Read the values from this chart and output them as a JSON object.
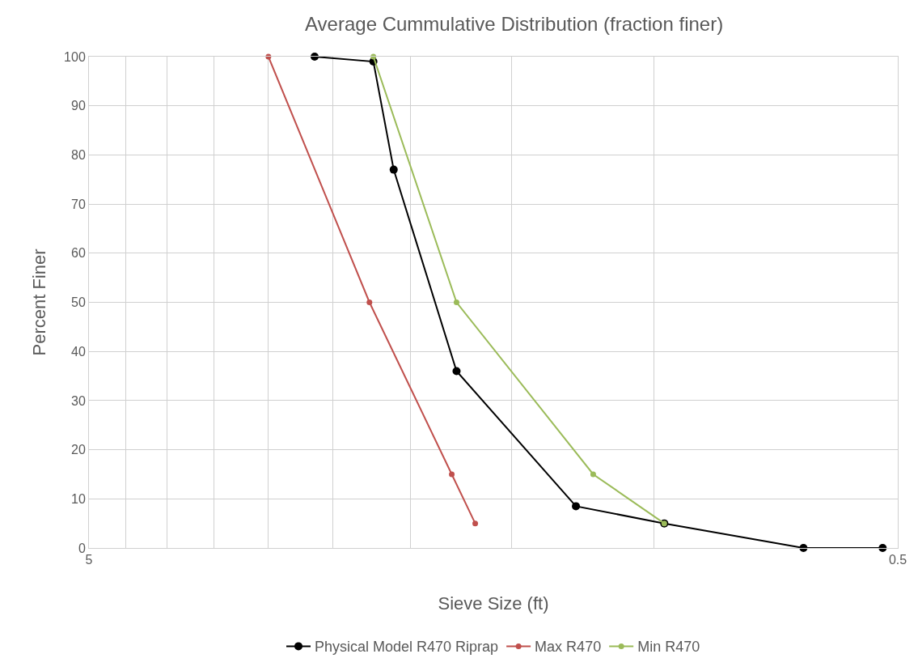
{
  "chart_data": {
    "type": "line",
    "title": "Average Cummulative Distribution (fraction finer)",
    "xlabel": "Sieve Size (ft)",
    "ylabel": "Percent Finer",
    "log": "x",
    "xlim": [
      5,
      0.5
    ],
    "xticks": [
      5,
      {
        "value": 4.5,
        "label": null
      },
      {
        "value": 4,
        "label": null
      },
      {
        "value": 3.5,
        "label": null
      },
      {
        "value": 3,
        "label": null
      },
      {
        "value": 2.5,
        "label": null
      },
      {
        "value": 2,
        "label": null
      },
      {
        "value": 1.5,
        "label": null
      },
      {
        "value": 1,
        "label": null
      },
      0.5
    ],
    "ylim": [
      0,
      100
    ],
    "yticks": [
      0,
      10,
      20,
      30,
      40,
      50,
      60,
      70,
      80,
      90,
      100
    ],
    "grid": true,
    "legend": "bottom",
    "marker": "circle",
    "line_style": "solid",
    "series": [
      {
        "name": "Physical Model R470 Riprap",
        "color": "#000000",
        "x": [
          2.63,
          2.225,
          2.1,
          1.756,
          1.25,
          0.972,
          0.654,
          0.522
        ],
        "values": [
          100,
          99,
          77,
          36,
          8.5,
          5,
          0,
          0
        ]
      },
      {
        "name": "Max R470",
        "color": "#c0504d",
        "x": [
          3.0,
          2.25,
          1.78,
          1.665
        ],
        "values": [
          100,
          50,
          15,
          5
        ]
      },
      {
        "name": "Min R470",
        "color": "#9bbb59",
        "x": [
          2.225,
          1.756,
          1.19,
          0.972
        ],
        "values": [
          100,
          50,
          15,
          5
        ]
      }
    ]
  }
}
